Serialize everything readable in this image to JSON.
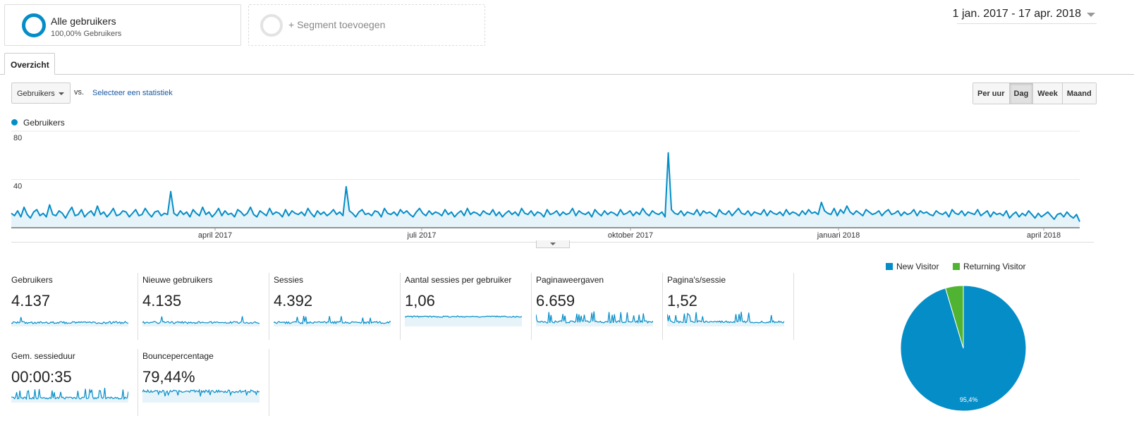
{
  "segments": {
    "all": {
      "title": "Alle gebruikers",
      "sub": "100,00% Gebruikers"
    },
    "add_label": "+ Segment toevoegen"
  },
  "daterange": {
    "label": "1 jan. 2017 - 17 apr. 2018"
  },
  "tabs": [
    {
      "label": "Overzicht"
    }
  ],
  "controls": {
    "metric_select": "Gebruikers",
    "vs": "vs.",
    "select_stat": "Selecteer een statistiek",
    "granularity": [
      "Per uur",
      "Dag",
      "Week",
      "Maand"
    ],
    "granularity_active": "Dag"
  },
  "colors": {
    "accent": "#058dc7",
    "returning": "#50b432",
    "area": "#e6f3f9"
  },
  "chart_data": [
    {
      "type": "area",
      "series": [
        {
          "name": "Gebruikers",
          "values": [
            12,
            10,
            14,
            9,
            17,
            11,
            8,
            13,
            15,
            10,
            12,
            9,
            19,
            11,
            10,
            14,
            12,
            8,
            13,
            17,
            10,
            11,
            15,
            9,
            12,
            14,
            10,
            18,
            11,
            13,
            9,
            12,
            16,
            10,
            11,
            14,
            13,
            9,
            12,
            15,
            10,
            11,
            16,
            12,
            9,
            13,
            14,
            10,
            12,
            11,
            30,
            12,
            10,
            14,
            11,
            13,
            9,
            15,
            12,
            10,
            17,
            11,
            13,
            9,
            12,
            16,
            10,
            14,
            11,
            12,
            9,
            15,
            13,
            10,
            12,
            17,
            11,
            9,
            14,
            12,
            10,
            16,
            11,
            13,
            12,
            9,
            15,
            10,
            14,
            12,
            11,
            13,
            10,
            16,
            12,
            9,
            14,
            11,
            13,
            10,
            12,
            15,
            11,
            13,
            10,
            34,
            14,
            12,
            9,
            13,
            15,
            11,
            12,
            10,
            14,
            13,
            9,
            16,
            12,
            11,
            13,
            10,
            15,
            12,
            14,
            11,
            9,
            13,
            16,
            12,
            10,
            14,
            11,
            13,
            12,
            10,
            15,
            11,
            13,
            9,
            12,
            14,
            10,
            16,
            11,
            13,
            12,
            10,
            14,
            12,
            11,
            15,
            10,
            13,
            9,
            12,
            14,
            11,
            13,
            10,
            16,
            12,
            11,
            14,
            10,
            13,
            12,
            9,
            15,
            11,
            12,
            14,
            10,
            13,
            11,
            12,
            16,
            10,
            14,
            12,
            11,
            13,
            9,
            15,
            12,
            10,
            14,
            11,
            13,
            12,
            10,
            15,
            11,
            12,
            14,
            10,
            13,
            11,
            16,
            12,
            10,
            14,
            12,
            11,
            13,
            9,
            62,
            15,
            12,
            11,
            14,
            10,
            13,
            12,
            11,
            15,
            10,
            14,
            12,
            13,
            11,
            9,
            15,
            12,
            11,
            14,
            10,
            13,
            16,
            12,
            11,
            14,
            10,
            13,
            12,
            11,
            15,
            10,
            14,
            12,
            11,
            13,
            10,
            15,
            11,
            13,
            12,
            10,
            14,
            11,
            15,
            12,
            13,
            11,
            21,
            14,
            12,
            11,
            16,
            10,
            15,
            12,
            18,
            13,
            11,
            14,
            12,
            10,
            15,
            13,
            11,
            12,
            14,
            10,
            13,
            15,
            11,
            12,
            14,
            10,
            13,
            11,
            12,
            15,
            10,
            14,
            12,
            13,
            11,
            10,
            14,
            12,
            11,
            13,
            9,
            15,
            12,
            11,
            14,
            10,
            13,
            12,
            11,
            15,
            10,
            12,
            14,
            9,
            13,
            11,
            12,
            10,
            14,
            8,
            11,
            13,
            9,
            12,
            10,
            14,
            11,
            8,
            12,
            9,
            11,
            13,
            10,
            7,
            11,
            12,
            9,
            13,
            10,
            8,
            11,
            5
          ]
        }
      ],
      "ylim": [
        0,
        80
      ],
      "yticks": [
        "80",
        "40"
      ],
      "xticks": [
        "april 2017",
        "juli 2017",
        "oktober 2017",
        "januari 2018",
        "april 2018"
      ]
    },
    {
      "type": "pie",
      "categories": [
        "New Visitor",
        "Returning Visitor"
      ],
      "values": [
        95.4,
        4.6
      ],
      "labels": [
        "95,4%",
        ""
      ]
    }
  ],
  "stats": [
    {
      "label": "Gebruikers",
      "value": "4.137"
    },
    {
      "label": "Nieuwe gebruikers",
      "value": "4.135"
    },
    {
      "label": "Sessies",
      "value": "4.392"
    },
    {
      "label": "Aantal sessies per gebruiker",
      "value": "1,06"
    },
    {
      "label": "Paginaweergaven",
      "value": "6.659"
    },
    {
      "label": "Pagina's/sessie",
      "value": "1,52"
    },
    {
      "label": "Gem. sessieduur",
      "value": "00:00:35"
    },
    {
      "label": "Bouncepercentage",
      "value": "79,44%"
    }
  ]
}
